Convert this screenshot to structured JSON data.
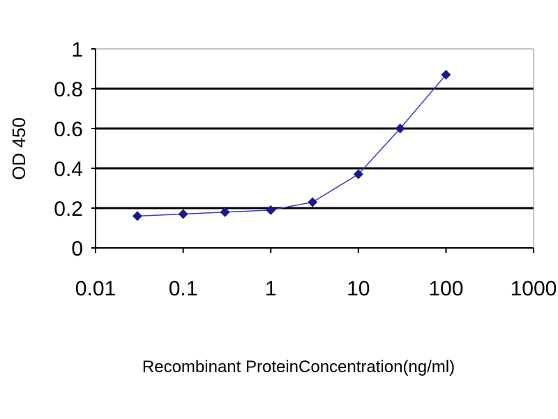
{
  "chart_data": {
    "type": "line",
    "title": "",
    "xlabel": "Recombinant ProteinConcentration(ng/ml)",
    "ylabel": "OD 450",
    "x_scale": "log",
    "xlim": [
      0.01,
      1000
    ],
    "ylim": [
      0,
      1
    ],
    "x_ticks": [
      "0.01",
      "0.1",
      "1",
      "10",
      "100",
      "1000"
    ],
    "y_ticks": [
      "0",
      "0.2",
      "0.4",
      "0.6",
      "0.8",
      "1"
    ],
    "grid": "horizontal",
    "legend": "none",
    "series": [
      {
        "color": "#1a1a8c",
        "marker": "diamond",
        "x": [
          0.03,
          0.1,
          0.3,
          1,
          3,
          10,
          30,
          100
        ],
        "y": [
          0.16,
          0.17,
          0.18,
          0.19,
          0.23,
          0.37,
          0.6,
          0.87
        ]
      }
    ]
  }
}
